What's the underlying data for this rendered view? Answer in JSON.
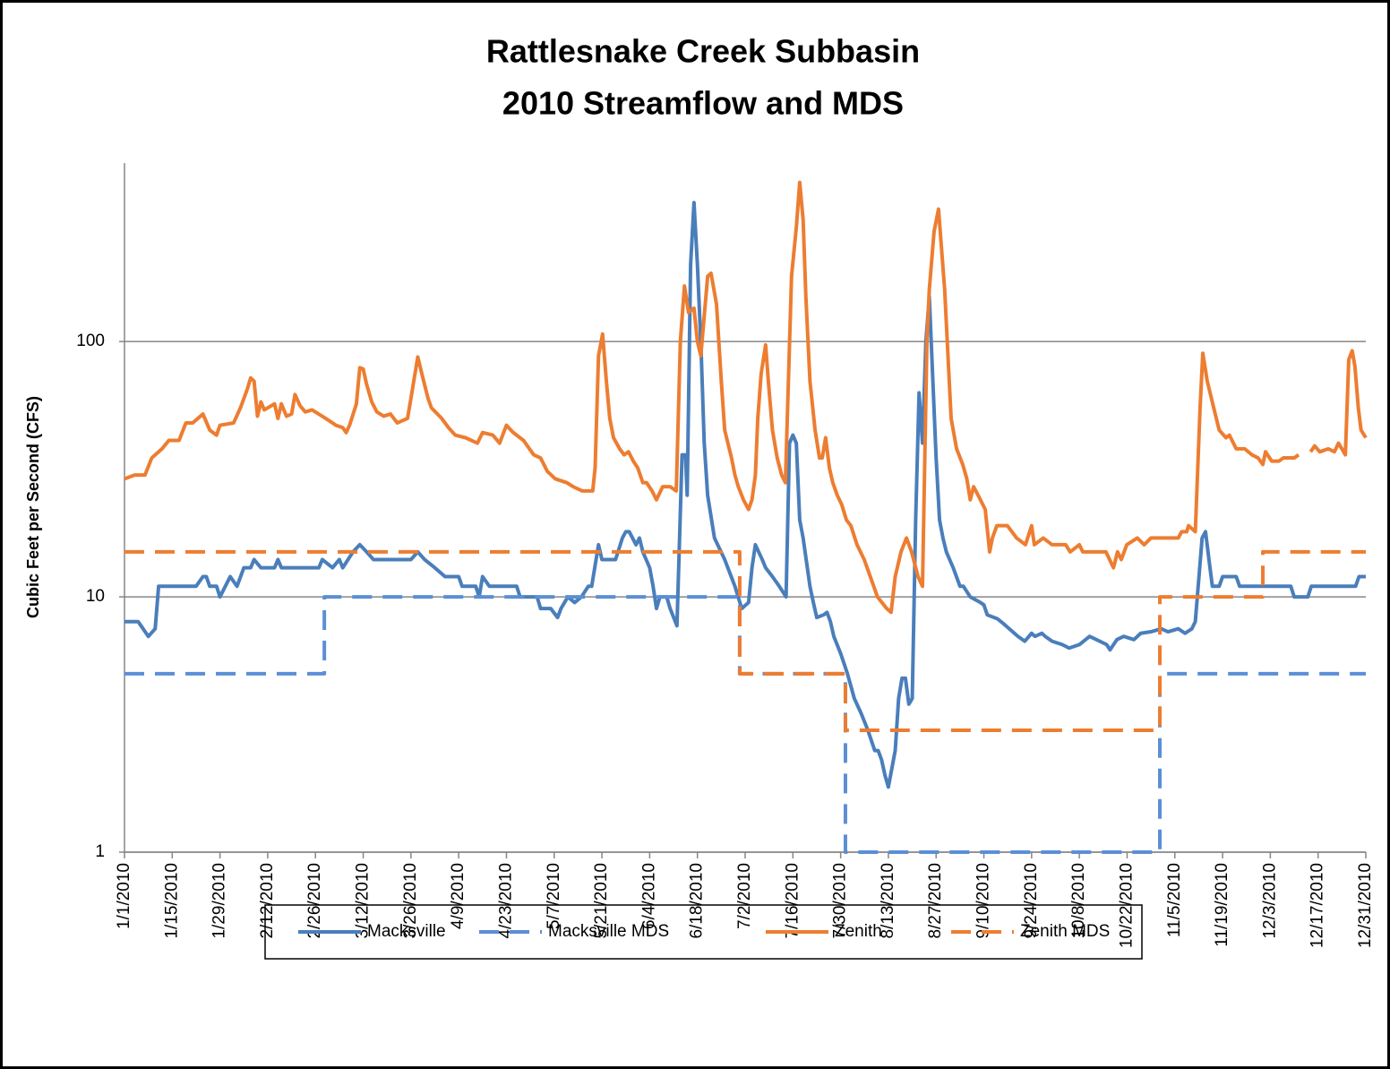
{
  "chart_data": {
    "type": "line",
    "title": "Rattlesnake Creek Subbasin",
    "subtitle": "2010 Streamflow and MDS",
    "y_label": "Cubic Feet per Second (CFS)",
    "log_y": true,
    "grid": true,
    "legend": "bottom",
    "ylim": [
      1,
      500
    ],
    "yticks": [
      1,
      10,
      100
    ],
    "xlim": [
      0,
      364
    ],
    "xticks": [
      {
        "value": 0,
        "label": "1/1/2010"
      },
      {
        "value": 14,
        "label": "1/15/2010"
      },
      {
        "value": 28,
        "label": "1/29/2010"
      },
      {
        "value": 42,
        "label": "2/12/2010"
      },
      {
        "value": 56,
        "label": "2/26/2010"
      },
      {
        "value": 70,
        "label": "3/12/2010"
      },
      {
        "value": 84,
        "label": "3/26/2010"
      },
      {
        "value": 98,
        "label": "4/9/2010"
      },
      {
        "value": 112,
        "label": "4/23/2010"
      },
      {
        "value": 126,
        "label": "5/7/2010"
      },
      {
        "value": 140,
        "label": "5/21/2010"
      },
      {
        "value": 154,
        "label": "6/4/2010"
      },
      {
        "value": 168,
        "label": "6/18/2010"
      },
      {
        "value": 182,
        "label": "7/2/2010"
      },
      {
        "value": 196,
        "label": "7/16/2010"
      },
      {
        "value": 210,
        "label": "7/30/2010"
      },
      {
        "value": 224,
        "label": "8/13/2010"
      },
      {
        "value": 238,
        "label": "8/27/2010"
      },
      {
        "value": 252,
        "label": "9/10/2010"
      },
      {
        "value": 266,
        "label": "9/24/2010"
      },
      {
        "value": 280,
        "label": "10/8/2010"
      },
      {
        "value": 294,
        "label": "10/22/2010"
      },
      {
        "value": 308,
        "label": "11/5/2010"
      },
      {
        "value": 322,
        "label": "11/19/2010"
      },
      {
        "value": 336,
        "label": "12/3/2010"
      },
      {
        "value": 350,
        "label": "12/17/2010"
      },
      {
        "value": 364,
        "label": "12/31/2010"
      }
    ],
    "series": [
      {
        "name": "Macksville",
        "color": "#4a7ebb",
        "dashed": false,
        "x": [
          0,
          4,
          7,
          9,
          10,
          21,
          23,
          24,
          25,
          27,
          28,
          31,
          33,
          35,
          37,
          38,
          40,
          44,
          45,
          46,
          57,
          58,
          61,
          63,
          64,
          67,
          69,
          71,
          73,
          84,
          86,
          88,
          91,
          94,
          98,
          99,
          103,
          104,
          105,
          107,
          115,
          116,
          121,
          122,
          125,
          127,
          128,
          130,
          132,
          134,
          136,
          137,
          139,
          140,
          144,
          146,
          147,
          148,
          150,
          151,
          152,
          154,
          155,
          156,
          157,
          159,
          160,
          162,
          163.5,
          164.5,
          165,
          166,
          167,
          168,
          169,
          170,
          171,
          173,
          176,
          179,
          181,
          183,
          184,
          185,
          187,
          188,
          190,
          192,
          194,
          195,
          196,
          197,
          198,
          199,
          201,
          202,
          203,
          205,
          206,
          207,
          208,
          210,
          212,
          214,
          216,
          218,
          220,
          221,
          222,
          223,
          224,
          226,
          227,
          228,
          229,
          230,
          231,
          232,
          233,
          234,
          235,
          236,
          238,
          239,
          240,
          241,
          243,
          245,
          246,
          248,
          251,
          252,
          253,
          256,
          258,
          262,
          264,
          266,
          267,
          269,
          270,
          272,
          275,
          277,
          280,
          283,
          285,
          288,
          289,
          291,
          293,
          296,
          298,
          301,
          304,
          306,
          309,
          311,
          313,
          314,
          316,
          317,
          318,
          319,
          321,
          322,
          326,
          327,
          342,
          343,
          347,
          348,
          361,
          362,
          364
        ],
        "values": [
          8,
          8,
          7,
          7.5,
          11,
          11,
          12,
          12,
          11,
          11,
          10,
          12,
          11,
          13,
          13,
          14,
          13,
          13,
          14,
          13,
          13,
          14,
          13,
          14,
          13,
          15,
          16,
          15,
          14,
          14,
          15,
          14,
          13,
          12,
          12,
          11,
          11,
          10,
          12,
          11,
          11,
          10,
          10,
          9,
          9,
          8.3,
          9,
          10,
          9.5,
          10,
          11,
          11,
          16,
          14,
          14,
          17,
          18,
          18,
          16,
          17,
          15,
          13,
          11,
          9,
          10,
          10,
          9,
          7.7,
          36,
          36,
          25,
          200,
          350,
          200,
          100,
          40,
          25,
          17,
          14,
          11,
          9,
          9.5,
          13,
          16,
          14,
          13,
          12,
          11,
          10,
          40,
          43,
          40,
          20,
          17,
          11,
          9.5,
          8.3,
          8.5,
          8.7,
          8,
          7,
          6,
          5,
          4,
          3.5,
          3,
          2.5,
          2.5,
          2.3,
          2,
          1.8,
          2.5,
          4,
          4.8,
          4.8,
          3.8,
          4,
          20,
          63,
          40,
          100,
          150,
          35,
          20,
          17,
          15,
          13,
          11,
          11,
          10,
          9.5,
          9.3,
          8.5,
          8.2,
          7.8,
          7,
          6.7,
          7.2,
          7,
          7.2,
          7,
          6.7,
          6.5,
          6.3,
          6.5,
          7,
          6.8,
          6.5,
          6.2,
          6.8,
          7,
          6.8,
          7.2,
          7.3,
          7.5,
          7.3,
          7.5,
          7.2,
          7.5,
          8,
          17,
          18,
          14,
          11,
          11,
          12,
          12,
          11,
          11,
          10,
          10,
          11,
          11,
          12,
          12
        ]
      },
      {
        "name": "Macksville MDS",
        "color": "#5b8fd6",
        "dashed": true,
        "x": [
          0,
          58.6,
          58.6,
          180.4,
          180.4,
          211.4,
          211.4,
          303.6,
          303.6,
          364
        ],
        "values": [
          5,
          5,
          10,
          10,
          5,
          5,
          1,
          1,
          5,
          5
        ]
      },
      {
        "name": "Zenith",
        "color": "#ed7d31",
        "dashed": false,
        "x": [
          0,
          3,
          6,
          8,
          11,
          13,
          16,
          18,
          20,
          23,
          25,
          27,
          28,
          32,
          34,
          36,
          37,
          38,
          39,
          40,
          41,
          44,
          45,
          46,
          47.5,
          49,
          50,
          51.5,
          53,
          55,
          59,
          62,
          64,
          65,
          66,
          68,
          69,
          70,
          71,
          72.5,
          74,
          76,
          78,
          80,
          83,
          84,
          86,
          87.5,
          89,
          90,
          93,
          95,
          97,
          100,
          103.5,
          105,
          108,
          110,
          112,
          114,
          117,
          120,
          122,
          124,
          126.3,
          129.7,
          131.6,
          134.2,
          137.3,
          138,
          139,
          140.2,
          141.3,
          142.3,
          143.4,
          145.2,
          146.5,
          147.8,
          149.2,
          150.5,
          152,
          153.1,
          154.7,
          156,
          157.8,
          160,
          161.8,
          163,
          164.2,
          165.4,
          167,
          168,
          169,
          171,
          172,
          173.6,
          175,
          176,
          178,
          179,
          180,
          181.5,
          183,
          184,
          185,
          185.7,
          186.7,
          188,
          188.8,
          190,
          191.4,
          192.7,
          193.8,
          195.6,
          197,
          198,
          199,
          199.8,
          201,
          202.5,
          203.8,
          204.6,
          205.6,
          206.7,
          207.7,
          209,
          210.3,
          211.7,
          213,
          214.8,
          216.9,
          218.7,
          220.8,
          223.5,
          224.8,
          226,
          227.7,
          229.3,
          230.8,
          232.7,
          234,
          235.3,
          236,
          237.4,
          238.7,
          240.5,
          242.4,
          244,
          245.8,
          247,
          248,
          249,
          250.3,
          252.4,
          253.7,
          254.5,
          255.8,
          258.9,
          261.6,
          264.2,
          266,
          266.8,
          269.4,
          272,
          276,
          277.3,
          280,
          281,
          287.8,
          290,
          291.2,
          292.3,
          293.9,
          297,
          299,
          301,
          309,
          310,
          311.5,
          312,
          314,
          315.4,
          316.2,
          317.5,
          319.4,
          321,
          323,
          324,
          326,
          328.5,
          330.6,
          332.4,
          333.8,
          334.6,
          336.4,
          338.5,
          339.8,
          343,
          344.3,
          346,
          347.8,
          349,
          350.5,
          353,
          354.8,
          356,
          358,
          359,
          360,
          360.8,
          361.8,
          362.6,
          364
        ],
        "values": [
          29,
          30,
          30,
          35,
          38,
          41,
          41,
          48,
          48,
          52,
          45,
          43,
          47,
          48,
          55,
          65,
          72,
          70,
          51,
          58,
          54,
          57,
          50,
          57,
          51,
          52,
          62,
          56,
          53,
          54,
          50,
          47,
          46,
          44,
          47,
          57,
          79,
          78,
          68,
          58,
          53,
          51,
          52,
          48,
          50,
          60,
          87,
          72,
          60,
          55,
          50,
          46,
          43,
          42,
          40,
          44,
          43,
          40,
          47,
          44,
          41,
          36,
          35,
          31,
          29,
          28,
          27,
          26,
          26,
          32,
          88,
          107,
          70,
          50,
          42,
          38,
          36,
          37,
          34,
          32,
          28,
          28,
          26,
          24,
          27,
          27,
          26,
          100,
          165,
          130,
          135,
          100,
          88,
          180,
          185,
          140,
          70,
          45,
          35,
          30,
          27,
          24,
          22,
          24,
          30,
          50,
          75,
          97,
          70,
          45,
          35,
          30,
          28,
          180,
          280,
          420,
          300,
          150,
          70,
          45,
          35,
          35,
          42,
          32,
          28,
          25,
          23,
          20,
          19,
          16,
          14,
          12,
          10,
          9,
          8.7,
          12,
          15,
          17,
          15,
          12,
          11,
          100,
          160,
          270,
          330,
          160,
          50,
          38,
          33,
          29,
          24,
          27,
          25,
          22,
          15,
          17,
          19,
          19,
          17,
          16,
          19,
          16,
          17,
          16,
          16,
          15,
          16,
          15,
          15,
          13,
          15,
          14,
          16,
          17,
          16,
          17,
          17,
          18,
          18,
          19,
          18,
          55,
          90,
          70,
          55,
          45,
          42,
          43,
          38,
          38,
          36,
          35,
          33,
          37,
          34,
          34,
          35,
          35,
          36,
          null,
          37,
          39,
          37,
          38,
          37,
          40,
          36,
          85,
          92,
          80,
          55,
          45,
          42
        ]
      },
      {
        "name": "Zenith MDS",
        "color": "#ed7d31",
        "dashed": true,
        "x": [
          0,
          180.4,
          180.4,
          211.4,
          211.4,
          303.6,
          303.6,
          333.8,
          333.8,
          364
        ],
        "values": [
          15,
          15,
          5,
          5,
          3,
          3,
          10,
          10,
          15,
          15
        ]
      }
    ]
  }
}
